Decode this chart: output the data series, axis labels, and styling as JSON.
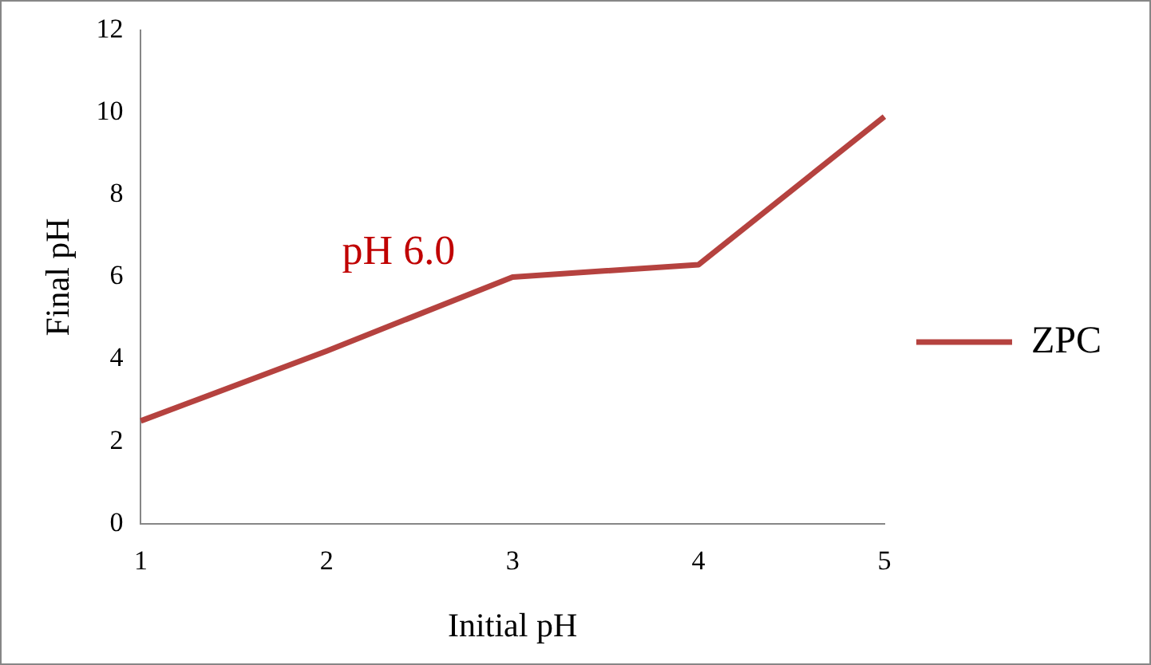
{
  "chart_data": {
    "type": "line",
    "xlabel": "Initial pH",
    "ylabel": "Final pH",
    "categories": [
      "1",
      "2",
      "3",
      "4",
      "5"
    ],
    "series": [
      {
        "name": "ZPC",
        "color": "#b5423f",
        "values": [
          2.5,
          4.2,
          6.0,
          6.3,
          9.9
        ]
      }
    ],
    "ylim": [
      0,
      12
    ],
    "yticks": [
      0,
      2,
      4,
      6,
      8,
      10,
      12
    ],
    "grid": false,
    "legend": "right",
    "marker": "none",
    "annotations": [
      {
        "text": "pH 6.0",
        "x": "3",
        "y": 6.0
      }
    ]
  }
}
